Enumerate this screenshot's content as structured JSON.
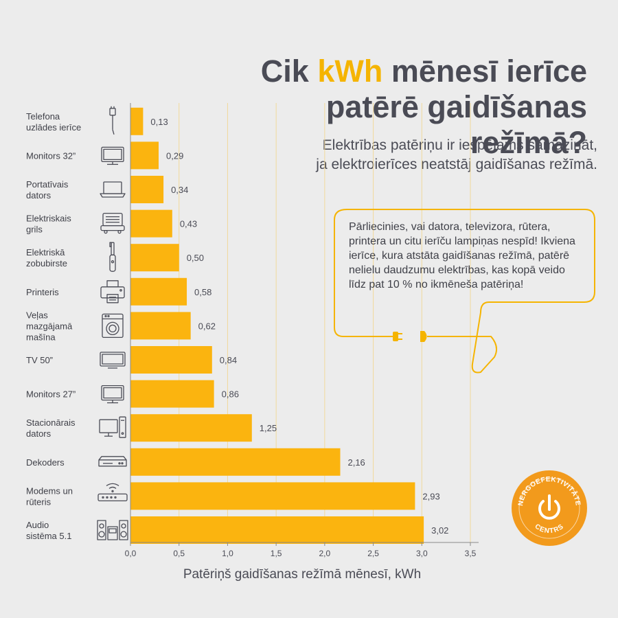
{
  "header": {
    "title_part1": "Cik ",
    "title_highlight": "kWh",
    "title_part2": " mēnesī ierīce",
    "title_line2": "patērē gaidīšanas režīmā?",
    "subtitle_line1": "Elektrības patēriņu ir iespējams samazināt,",
    "subtitle_line2": "ja elektroierīces neatstāj gaidīšanas režīmā."
  },
  "callout": {
    "text": "Pārliecinies, vai datora, televizora, rūtera, printera un citu ierīču lampiņas nespīd! Ikviena ierīce, kura atstāta gaidīšanas režīmā, patērē nelielu daudzumu elektrības, kas kopā veido līdz pat 10 % no ikmēneša patēriņa!"
  },
  "badge": {
    "top_text": "ENERGOEFEKTIVITĀTES",
    "bottom_text": "CENTRS"
  },
  "colors": {
    "bar": "#fbb40f",
    "text": "#4a4b55",
    "grid": "#f1d99a",
    "background": "#ececec",
    "badge": "#f29a1c"
  },
  "chart_data": {
    "type": "bar",
    "orientation": "horizontal",
    "xlabel": "Patēriņš gaidīšanas režīmā mēnesī, kWh",
    "xlim": [
      0,
      3.5
    ],
    "xticks": [
      "0,0",
      "0,5",
      "1,0",
      "1,5",
      "2,0",
      "2,5",
      "3,0",
      "3,5"
    ],
    "categories": [
      {
        "lines": [
          "Telefona",
          "uzlādes ierīce"
        ],
        "icon": "phone-charger-icon"
      },
      {
        "lines": [
          "Monitors 32”"
        ],
        "icon": "monitor-icon"
      },
      {
        "lines": [
          "Portatīvais",
          "dators"
        ],
        "icon": "laptop-icon"
      },
      {
        "lines": [
          "Elektriskais",
          "grils"
        ],
        "icon": "grill-icon"
      },
      {
        "lines": [
          "Elektriskā",
          "zobubirste"
        ],
        "icon": "toothbrush-icon"
      },
      {
        "lines": [
          "Printeris"
        ],
        "icon": "printer-icon"
      },
      {
        "lines": [
          "Veļas",
          "mazgājamā",
          "mašīna"
        ],
        "icon": "washing-machine-icon"
      },
      {
        "lines": [
          "TV 50”"
        ],
        "icon": "tv-icon"
      },
      {
        "lines": [
          "Monitors 27”"
        ],
        "icon": "monitor-icon"
      },
      {
        "lines": [
          "Stacionārais",
          "dators"
        ],
        "icon": "desktop-pc-icon"
      },
      {
        "lines": [
          "Dekoders"
        ],
        "icon": "decoder-icon"
      },
      {
        "lines": [
          "Modems un",
          "rūteris"
        ],
        "icon": "router-icon"
      },
      {
        "lines": [
          "Audio",
          "sistēma 5.1"
        ],
        "icon": "speaker-system-icon"
      }
    ],
    "values": [
      0.13,
      0.29,
      0.34,
      0.43,
      0.5,
      0.58,
      0.62,
      0.84,
      0.86,
      1.25,
      2.16,
      2.93,
      3.02
    ],
    "value_labels": [
      "0,13",
      "0,29",
      "0,34",
      "0,43",
      "0,50",
      "0,58",
      "0,62",
      "0,84",
      "0,86",
      "1,25",
      "2,16",
      "2,93",
      "3,02"
    ]
  }
}
